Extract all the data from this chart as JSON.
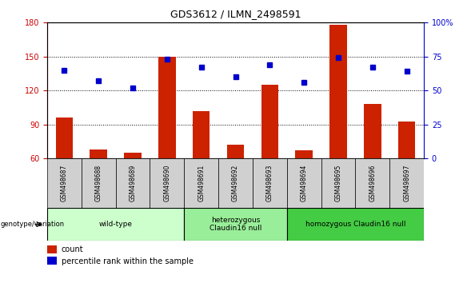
{
  "title": "GDS3612 / ILMN_2498591",
  "samples": [
    "GSM498687",
    "GSM498688",
    "GSM498689",
    "GSM498690",
    "GSM498691",
    "GSM498692",
    "GSM498693",
    "GSM498694",
    "GSM498695",
    "GSM498696",
    "GSM498697"
  ],
  "counts": [
    96,
    68,
    65,
    150,
    102,
    72,
    125,
    67,
    178,
    108,
    93
  ],
  "percentile_ranks": [
    65,
    57,
    52,
    73,
    67,
    60,
    69,
    56,
    74,
    67,
    64
  ],
  "groups": [
    {
      "label": "wild-type",
      "samples": [
        0,
        1,
        2,
        3
      ],
      "color": "#ccffcc"
    },
    {
      "label": "heterozygous\nClaudin16 null",
      "samples": [
        4,
        5,
        6
      ],
      "color": "#99ee99"
    },
    {
      "label": "homozygous Claudin16 null",
      "samples": [
        7,
        8,
        9,
        10
      ],
      "color": "#44cc44"
    }
  ],
  "ylim_left": [
    60,
    180
  ],
  "ylim_right": [
    0,
    100
  ],
  "yticks_left": [
    60,
    90,
    120,
    150,
    180
  ],
  "yticks_right": [
    0,
    25,
    50,
    75,
    100
  ],
  "bar_color": "#cc2200",
  "dot_color": "#0000cc",
  "bar_width": 0.5,
  "sample_box_color": "#d0d0d0",
  "xlabel_color": "#cc0000",
  "ylabel_right_color": "#0000cc",
  "genotype_label": "genotype/variation"
}
